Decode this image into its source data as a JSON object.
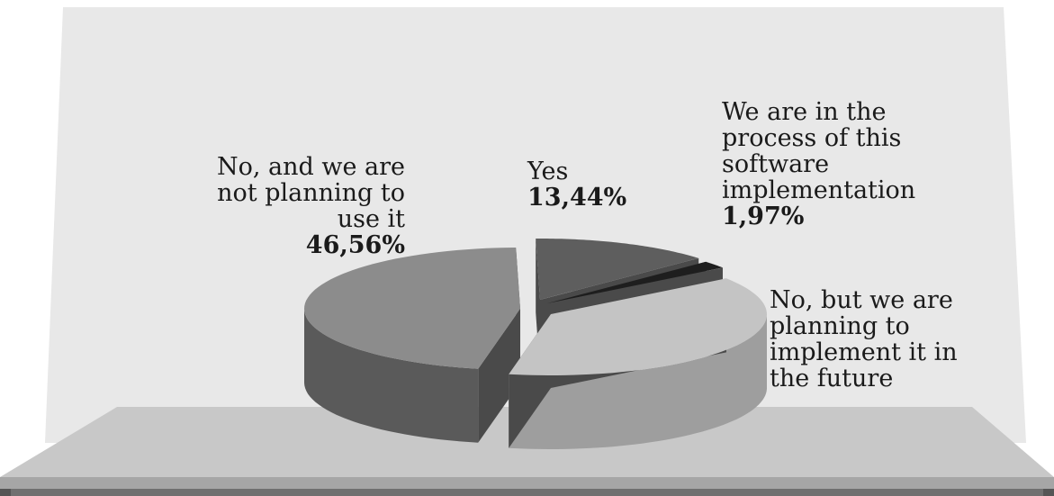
{
  "chart_data": {
    "type": "pie",
    "title": "",
    "style": "3d-exploded",
    "slices": [
      {
        "label": "Yes",
        "value": 13.44,
        "value_label": "13,44%",
        "color": "#5e5e5e",
        "side_color": "#3f3f3f"
      },
      {
        "label": "We are in the process of this software implementation",
        "value": 1.97,
        "value_label": "1,97%",
        "color": "#1e1e1e",
        "side_color": "#0a0a0a"
      },
      {
        "label": "No, but we are planning to implement it in the future",
        "value": 38.03,
        "value_label": "",
        "color": "#c4c4c4",
        "side_color": "#9e9e9e"
      },
      {
        "label": "No, and we are not planning to use it",
        "value": 46.56,
        "value_label": "46,56%",
        "color": "#8c8c8c",
        "side_color": "#5a5a5a"
      }
    ],
    "label_lines": [
      [
        "Yes"
      ],
      [
        "We are in the",
        "process of this",
        "software",
        "implementation"
      ],
      [
        "No, but we are",
        "planning to",
        "implement it in",
        "the future"
      ],
      [
        "No, and we are",
        "not planning to",
        "use it"
      ]
    ],
    "background_colors": {
      "wall": "#e8e8e8",
      "floor": "#c8c8c8",
      "floor_edge": "#a6a6a6",
      "floor_shadow": "#707070"
    }
  }
}
